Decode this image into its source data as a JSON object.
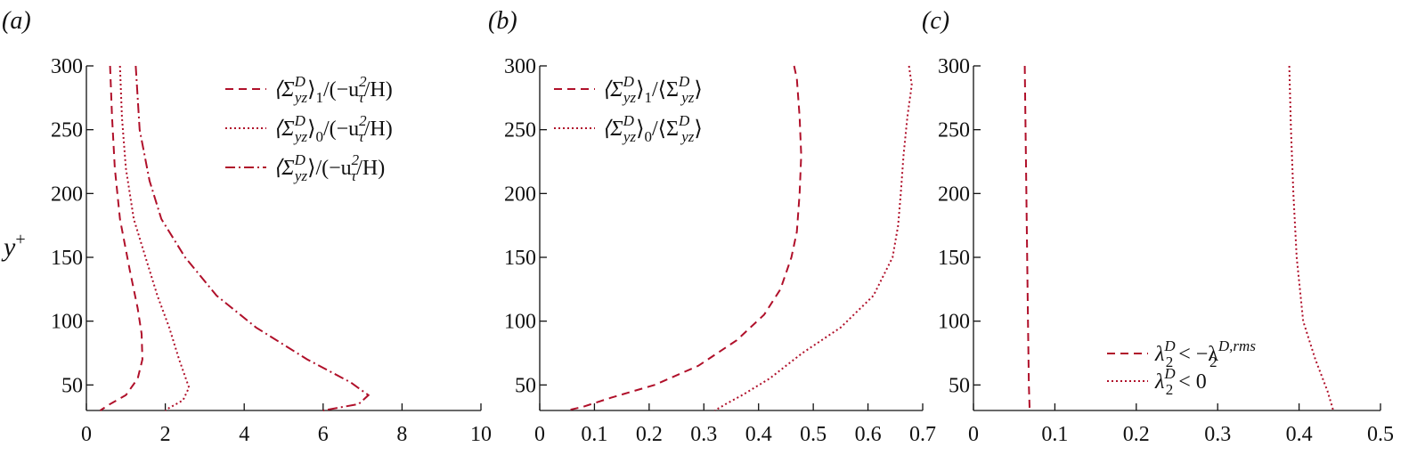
{
  "figure": {
    "ylabel_base": "y",
    "ylabel_sup": "+",
    "colors": {
      "series": "#b0102a",
      "axis": "#111111"
    }
  },
  "chart_data": [
    {
      "id": "a",
      "panel_label": "(a)",
      "type": "line",
      "xlim": [
        0,
        10
      ],
      "ylim": [
        30,
        300
      ],
      "xticks": [
        0,
        2,
        4,
        6,
        8,
        10
      ],
      "yticks": [
        50,
        100,
        150,
        200,
        250,
        300
      ],
      "legend_position": "top-right",
      "series": [
        {
          "legend": {
            "base": "⟨Σ",
            "sup": "D",
            "sub": "yz",
            "rest": "⟩",
            "sub2": "1",
            "tail": "/(−u",
            "tailsup": "2",
            "tailsub": "τ",
            "tail2": "/H)"
          },
          "style": "dashed",
          "points": [
            [
              0.6,
              300
            ],
            [
              0.65,
              260
            ],
            [
              0.72,
              220
            ],
            [
              0.85,
              180
            ],
            [
              1.1,
              140
            ],
            [
              1.3,
              110
            ],
            [
              1.4,
              90
            ],
            [
              1.42,
              70
            ],
            [
              1.3,
              55
            ],
            [
              1.0,
              42
            ],
            [
              0.6,
              35
            ],
            [
              0.35,
              30
            ]
          ]
        },
        {
          "legend": {
            "base": "⟨Σ",
            "sup": "D",
            "sub": "yz",
            "rest": "⟩",
            "sub2": "0",
            "tail": "/(−u",
            "tailsup": "2",
            "tailsub": "τ",
            "tail2": "/H)"
          },
          "style": "dotted",
          "points": [
            [
              0.85,
              300
            ],
            [
              0.9,
              260
            ],
            [
              1.0,
              220
            ],
            [
              1.2,
              180
            ],
            [
              1.5,
              150
            ],
            [
              1.8,
              120
            ],
            [
              2.1,
              95
            ],
            [
              2.35,
              70
            ],
            [
              2.6,
              48
            ],
            [
              2.45,
              38
            ],
            [
              2.1,
              32
            ],
            [
              2.0,
              30
            ]
          ]
        },
        {
          "legend": {
            "base": "⟨Σ",
            "sup": "D",
            "sub": "yz",
            "rest": "⟩",
            "sub2": "",
            "tail": "/(−u",
            "tailsup": "2",
            "tailsub": "τ",
            "tail2": "/H)"
          },
          "style": "dashdot",
          "points": [
            [
              1.25,
              300
            ],
            [
              1.35,
              250
            ],
            [
              1.6,
              210
            ],
            [
              1.9,
              180
            ],
            [
              2.5,
              150
            ],
            [
              3.3,
              120
            ],
            [
              4.3,
              95
            ],
            [
              5.6,
              70
            ],
            [
              6.7,
              52
            ],
            [
              7.15,
              42
            ],
            [
              6.9,
              35
            ],
            [
              6.0,
              30
            ]
          ]
        }
      ]
    },
    {
      "id": "b",
      "panel_label": "(b)",
      "type": "line",
      "xlim": [
        0,
        0.7
      ],
      "ylim": [
        30,
        300
      ],
      "xticks": [
        0,
        0.1,
        0.2,
        0.3,
        0.4,
        0.5,
        0.6,
        0.7
      ],
      "yticks": [
        50,
        100,
        150,
        200,
        250,
        300
      ],
      "legend_position": "top-left",
      "series": [
        {
          "legend": {
            "base": "⟨Σ",
            "sup": "D",
            "sub": "yz",
            "rest": "⟩",
            "sub2": "1",
            "tail": "/⟨Σ",
            "tailsup": "D",
            "tailsub": "yz",
            "tail2": "⟩"
          },
          "style": "dashed",
          "points": [
            [
              0.465,
              300
            ],
            [
              0.47,
              290
            ],
            [
              0.475,
              260
            ],
            [
              0.478,
              230
            ],
            [
              0.475,
              200
            ],
            [
              0.47,
              170
            ],
            [
              0.46,
              150
            ],
            [
              0.44,
              125
            ],
            [
              0.41,
              105
            ],
            [
              0.36,
              85
            ],
            [
              0.29,
              65
            ],
            [
              0.21,
              50
            ],
            [
              0.13,
              40
            ],
            [
              0.08,
              33
            ],
            [
              0.05,
              30
            ]
          ]
        },
        {
          "legend": {
            "base": "⟨Σ",
            "sup": "D",
            "sub": "yz",
            "rest": "⟩",
            "sub2": "0",
            "tail": "/⟨Σ",
            "tailsup": "D",
            "tailsub": "yz",
            "tail2": "⟩"
          },
          "style": "dotted",
          "points": [
            [
              0.675,
              300
            ],
            [
              0.68,
              285
            ],
            [
              0.672,
              260
            ],
            [
              0.665,
              230
            ],
            [
              0.66,
              200
            ],
            [
              0.655,
              175
            ],
            [
              0.645,
              150
            ],
            [
              0.61,
              120
            ],
            [
              0.55,
              95
            ],
            [
              0.48,
              75
            ],
            [
              0.42,
              55
            ],
            [
              0.37,
              42
            ],
            [
              0.34,
              35
            ],
            [
              0.32,
              30
            ]
          ]
        }
      ]
    },
    {
      "id": "c",
      "panel_label": "(c)",
      "type": "line",
      "xlim": [
        0,
        0.5
      ],
      "ylim": [
        30,
        300
      ],
      "xticks": [
        0,
        0.1,
        0.2,
        0.3,
        0.4,
        0.5
      ],
      "yticks": [
        50,
        100,
        150,
        200,
        250,
        300
      ],
      "legend_position": "bottom-right",
      "series": [
        {
          "legend": {
            "lhs": "λ",
            "lhs_sup": "D",
            "lhs_sub": "2",
            "op": " < −λ",
            "rhs_sup": "D,rms",
            "rhs_sub": "2",
            "rhs_tail": ""
          },
          "style": "dashed",
          "points": [
            [
              0.063,
              300
            ],
            [
              0.064,
              250
            ],
            [
              0.065,
              200
            ],
            [
              0.066,
              150
            ],
            [
              0.067,
              100
            ],
            [
              0.068,
              50
            ],
            [
              0.069,
              30
            ]
          ]
        },
        {
          "legend": {
            "lhs": "λ",
            "lhs_sup": "D",
            "lhs_sub": "2",
            "op": " < 0",
            "rhs_sup": "",
            "rhs_sub": "",
            "rhs_tail": ""
          },
          "style": "dotted",
          "points": [
            [
              0.388,
              300
            ],
            [
              0.39,
              250
            ],
            [
              0.393,
              200
            ],
            [
              0.397,
              150
            ],
            [
              0.405,
              100
            ],
            [
              0.42,
              70
            ],
            [
              0.435,
              45
            ],
            [
              0.442,
              30
            ]
          ]
        }
      ]
    }
  ]
}
